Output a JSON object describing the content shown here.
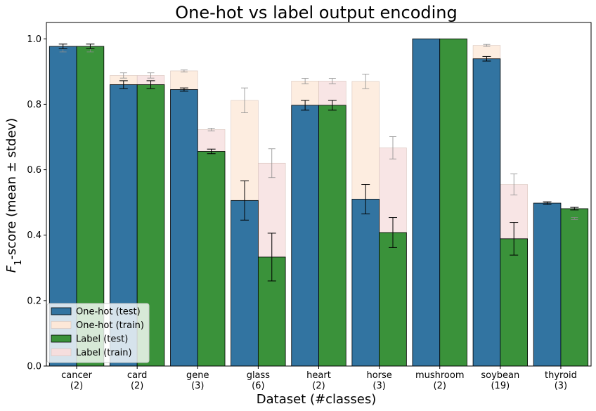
{
  "chart_data": {
    "type": "bar",
    "title": "One-hot vs label output encoding",
    "xlabel": "Dataset (#classes)",
    "ylabel": "F1-score (mean ± stdev)",
    "ylabel_math": {
      "base": "F",
      "subscript": "1",
      "rest": "-score (mean ± stdev)"
    },
    "ylim": [
      0.0,
      1.05
    ],
    "yticks": [
      0.0,
      0.2,
      0.4,
      0.6,
      0.8,
      1.0
    ],
    "ytick_labels": [
      "0.0",
      "0.2",
      "0.4",
      "0.6",
      "0.8",
      "1.0"
    ],
    "grid": false,
    "legend_position": "lower-left",
    "categories": [
      {
        "name": "cancer",
        "classes": "(2)"
      },
      {
        "name": "card",
        "classes": "(2)"
      },
      {
        "name": "gene",
        "classes": "(3)"
      },
      {
        "name": "glass",
        "classes": "(6)"
      },
      {
        "name": "heart",
        "classes": "(2)"
      },
      {
        "name": "horse",
        "classes": "(3)"
      },
      {
        "name": "mushroom",
        "classes": "(2)"
      },
      {
        "name": "soybean",
        "classes": "(19)"
      },
      {
        "name": "thyroid",
        "classes": "(3)"
      }
    ],
    "series": [
      {
        "name": "One-hot (train)",
        "group": "onehot",
        "kind": "train",
        "color": "#fde8d8",
        "values": [
          0.972,
          0.888,
          0.902,
          0.812,
          0.871,
          0.87,
          1.0,
          0.98,
          0.497
        ],
        "errors": [
          0.012,
          0.008,
          0.003,
          0.038,
          0.008,
          0.022,
          0.0,
          0.003,
          0.003
        ]
      },
      {
        "name": "Label (train)",
        "group": "label",
        "kind": "train",
        "color": "#f6dede",
        "values": [
          0.972,
          0.888,
          0.723,
          0.62,
          0.871,
          0.667,
          1.0,
          0.555,
          0.451
        ],
        "errors": [
          0.012,
          0.008,
          0.004,
          0.044,
          0.008,
          0.034,
          0.0,
          0.032,
          0.003
        ]
      },
      {
        "name": "One-hot (test)",
        "group": "onehot",
        "kind": "test",
        "color": "#3274a1",
        "values": [
          0.977,
          0.86,
          0.845,
          0.506,
          0.797,
          0.51,
          1.0,
          0.939,
          0.498
        ],
        "errors": [
          0.007,
          0.012,
          0.005,
          0.06,
          0.015,
          0.045,
          0.0,
          0.007,
          0.004
        ]
      },
      {
        "name": "Label (test)",
        "group": "label",
        "kind": "test",
        "color": "#3a923a",
        "values": [
          0.977,
          0.86,
          0.656,
          0.333,
          0.797,
          0.408,
          1.0,
          0.389,
          0.481
        ],
        "errors": [
          0.007,
          0.012,
          0.007,
          0.073,
          0.015,
          0.046,
          0.0,
          0.05,
          0.004
        ]
      }
    ],
    "legend": [
      {
        "label": "One-hot (test)",
        "color": "#3274a1",
        "kind": "test"
      },
      {
        "label": "One-hot (train)",
        "color": "#fde8d8",
        "kind": "train"
      },
      {
        "label": "Label (test)",
        "color": "#3a923a",
        "kind": "test"
      },
      {
        "label": "Label (train)",
        "color": "#f6dede",
        "kind": "train"
      }
    ]
  }
}
